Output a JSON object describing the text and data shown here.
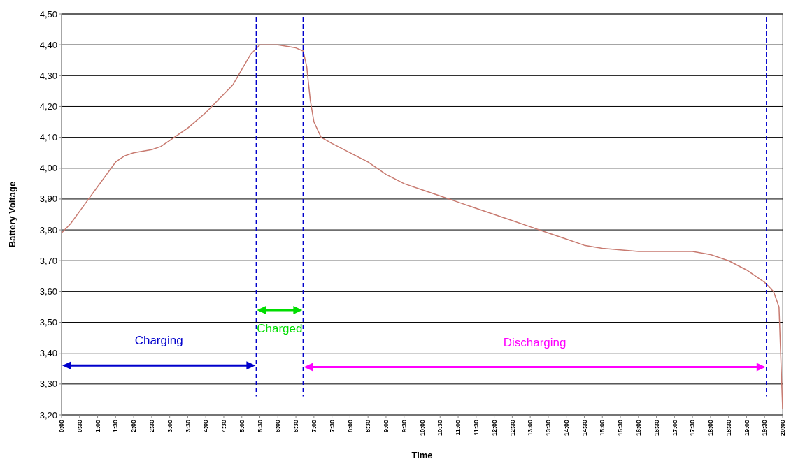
{
  "chart_data": {
    "type": "line",
    "xlabel": "Time",
    "ylabel": "Battery Voltage",
    "x": [
      0,
      0.25,
      0.5,
      0.75,
      1,
      1.25,
      1.5,
      1.75,
      2,
      2.5,
      2.75,
      3,
      3.5,
      4,
      4.5,
      4.75,
      5,
      5.25,
      5.5,
      6,
      6.5,
      6.7,
      6.8,
      6.9,
      7,
      7.2,
      7.5,
      8,
      8.5,
      9,
      9.5,
      10,
      10.5,
      11,
      11.5,
      12,
      12.5,
      13,
      13.5,
      14,
      14.5,
      15,
      15.5,
      16,
      17,
      17.5,
      18,
      18.5,
      19,
      19.5,
      19.75,
      19.9,
      20
    ],
    "series": [
      {
        "color": "#c87a70",
        "values": [
          3.79,
          3.82,
          3.86,
          3.9,
          3.94,
          3.98,
          4.02,
          4.04,
          4.05,
          4.06,
          4.07,
          4.09,
          4.13,
          4.18,
          4.24,
          4.27,
          4.32,
          4.37,
          4.4,
          4.4,
          4.39,
          4.38,
          4.33,
          4.22,
          4.15,
          4.1,
          4.08,
          4.05,
          4.02,
          3.98,
          3.95,
          3.93,
          3.91,
          3.89,
          3.87,
          3.85,
          3.83,
          3.81,
          3.79,
          3.77,
          3.75,
          3.74,
          3.735,
          3.73,
          3.73,
          3.73,
          3.72,
          3.7,
          3.67,
          3.63,
          3.6,
          3.55,
          3.22
        ]
      }
    ],
    "xlim": [
      0,
      20
    ],
    "xticks": [
      {
        "value": 0,
        "label": "0:00"
      },
      {
        "value": 0.5,
        "label": "0:30"
      },
      {
        "value": 1,
        "label": "1:00"
      },
      {
        "value": 1.5,
        "label": "1:30"
      },
      {
        "value": 2,
        "label": "2:00"
      },
      {
        "value": 2.5,
        "label": "2:30"
      },
      {
        "value": 3,
        "label": "3:00"
      },
      {
        "value": 3.5,
        "label": "3:30"
      },
      {
        "value": 4,
        "label": "4:00"
      },
      {
        "value": 4.5,
        "label": "4:30"
      },
      {
        "value": 5,
        "label": "5:00"
      },
      {
        "value": 5.5,
        "label": "5:30"
      },
      {
        "value": 6,
        "label": "6:00"
      },
      {
        "value": 6.5,
        "label": "6:30"
      },
      {
        "value": 7,
        "label": "7:00"
      },
      {
        "value": 7.5,
        "label": "7:30"
      },
      {
        "value": 8,
        "label": "8:00"
      },
      {
        "value": 8.5,
        "label": "8:30"
      },
      {
        "value": 9,
        "label": "9:00"
      },
      {
        "value": 9.5,
        "label": "9:30"
      },
      {
        "value": 10,
        "label": "10:00"
      },
      {
        "value": 10.5,
        "label": "10:30"
      },
      {
        "value": 11,
        "label": "11:00"
      },
      {
        "value": 11.5,
        "label": "11:30"
      },
      {
        "value": 12,
        "label": "12:00"
      },
      {
        "value": 12.5,
        "label": "12:30"
      },
      {
        "value": 13,
        "label": "13:00"
      },
      {
        "value": 13.5,
        "label": "13:30"
      },
      {
        "value": 14,
        "label": "14:00"
      },
      {
        "value": 14.5,
        "label": "14:30"
      },
      {
        "value": 15,
        "label": "15:00"
      },
      {
        "value": 15.5,
        "label": "15:30"
      },
      {
        "value": 16,
        "label": "16:00"
      },
      {
        "value": 16.5,
        "label": "16:30"
      },
      {
        "value": 17,
        "label": "17:00"
      },
      {
        "value": 17.5,
        "label": "17:30"
      },
      {
        "value": 18,
        "label": "18:00"
      },
      {
        "value": 18.5,
        "label": "18:30"
      },
      {
        "value": 19,
        "label": "19:00"
      },
      {
        "value": 19.5,
        "label": "19:30"
      },
      {
        "value": 20,
        "label": "20:00"
      }
    ],
    "ylim": [
      3.2,
      4.5
    ],
    "yticks": [
      {
        "value": 3.2,
        "label": "3,20"
      },
      {
        "value": 3.3,
        "label": "3,30"
      },
      {
        "value": 3.4,
        "label": "3,40"
      },
      {
        "value": 3.5,
        "label": "3,50"
      },
      {
        "value": 3.6,
        "label": "3,60"
      },
      {
        "value": 3.7,
        "label": "3,70"
      },
      {
        "value": 3.8,
        "label": "3,80"
      },
      {
        "value": 3.9,
        "label": "3,90"
      },
      {
        "value": 4,
        "label": "4,00"
      },
      {
        "value": 4.1,
        "label": "4,10"
      },
      {
        "value": 4.2,
        "label": "4,20"
      },
      {
        "value": 4.3,
        "label": "4,30"
      },
      {
        "value": 4.4,
        "label": "4,40"
      },
      {
        "value": 4.5,
        "label": "4,50"
      }
    ],
    "grid": "y",
    "line_style": "solid",
    "marker": "none",
    "ref_lines": [
      {
        "axis": "x",
        "value": 5.4,
        "color": "#0000cc",
        "line_style": "dashed"
      },
      {
        "axis": "x",
        "value": 6.7,
        "color": "#0000cc",
        "line_style": "dashed"
      },
      {
        "axis": "x",
        "value": 19.55,
        "color": "#0000cc",
        "line_style": "dashed"
      }
    ],
    "annotations": [
      "Charging",
      "Charged",
      "Discharging"
    ]
  }
}
